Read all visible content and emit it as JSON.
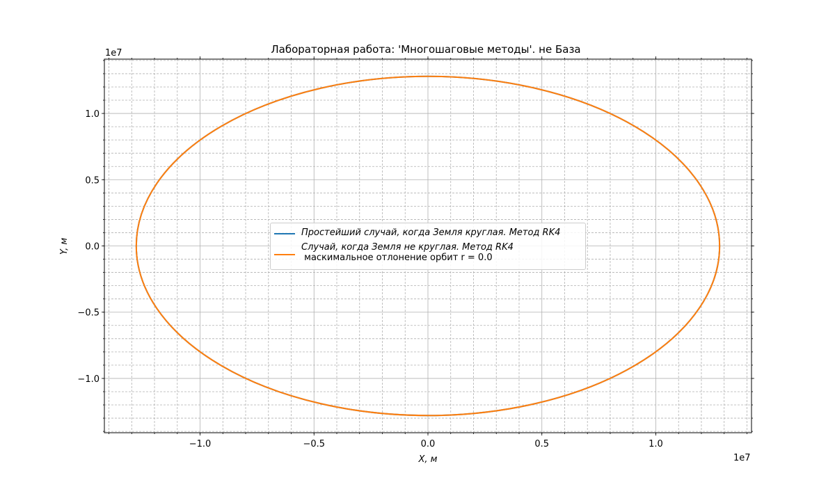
{
  "chart_data": {
    "type": "line",
    "title": "Лабораторная работа: 'Многошаговые методы'. не База",
    "xlabel": "X, м",
    "ylabel": "Y, м",
    "x_offset_label": "1e7",
    "y_offset_label": "1e7",
    "xlim": [
      -14200000.0,
      14200000.0
    ],
    "ylim": [
      -14100000.0,
      14100000.0
    ],
    "x_ticks": [
      -10000000.0,
      -5000000.0,
      0,
      5000000.0,
      10000000.0
    ],
    "x_tick_labels": [
      "−1.0",
      "−0.5",
      "0.0",
      "0.5",
      "1.0"
    ],
    "y_ticks": [
      -10000000.0,
      -5000000.0,
      0,
      5000000.0,
      10000000.0
    ],
    "y_tick_labels": [
      "−1.0",
      "−0.5",
      "0.0",
      "0.5",
      "1.0"
    ],
    "grid": "major and minor",
    "legend_position": "center",
    "series": [
      {
        "name": "Простейший случай, когда Земля круглая. Метод RK4",
        "color": "#1f77b4",
        "orbit": {
          "center_x": 0,
          "center_y": 0,
          "radius_x": 12800000.0,
          "radius_y": 12800000.0
        }
      },
      {
        "name": "Случай, когда Земля не круглая. Метод RK4",
        "name_line2": " маскимальное отлонение орбит r = 0.0",
        "color": "#ff7f0e",
        "orbit": {
          "center_x": 0,
          "center_y": 0,
          "radius_x": 12800000.0,
          "radius_y": 12800000.0
        }
      }
    ]
  }
}
